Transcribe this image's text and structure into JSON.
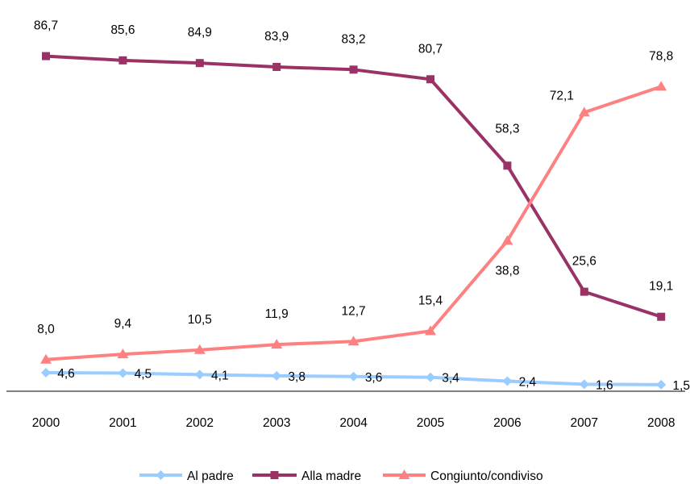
{
  "chart_data": {
    "type": "line",
    "title": "",
    "xlabel": "",
    "ylabel": "",
    "x": [
      "2000",
      "2001",
      "2002",
      "2003",
      "2004",
      "2005",
      "2006",
      "2007",
      "2008"
    ],
    "ylim": [
      0,
      100
    ],
    "grid": false,
    "legend_position": "bottom",
    "series": [
      {
        "name": "Al padre",
        "values": [
          4.6,
          4.5,
          4.1,
          3.8,
          3.6,
          3.4,
          2.4,
          1.6,
          1.5
        ],
        "labels": [
          "4,6",
          "4,5",
          "4,1",
          "3,8",
          "3,6",
          "3,4",
          "2,4",
          "1,6",
          "1,5"
        ],
        "color": "#99ccff",
        "marker": "diamond"
      },
      {
        "name": "Alla madre",
        "values": [
          86.7,
          85.6,
          84.9,
          83.9,
          83.2,
          80.7,
          58.3,
          25.6,
          19.1
        ],
        "labels": [
          "86,7",
          "85,6",
          "84,9",
          "83,9",
          "83,2",
          "80,7",
          "58,3",
          "25,6",
          "19,1"
        ],
        "color": "#993366",
        "marker": "square"
      },
      {
        "name": "Congiunto/condiviso",
        "values": [
          8.0,
          9.4,
          10.5,
          11.9,
          12.7,
          15.4,
          38.8,
          72.1,
          78.8
        ],
        "labels": [
          "8,0",
          "9,4",
          "10,5",
          "11,9",
          "12,7",
          "15,4",
          "38,8",
          "72,1",
          "78,8"
        ],
        "color": "#ff8080",
        "marker": "triangle"
      }
    ]
  }
}
